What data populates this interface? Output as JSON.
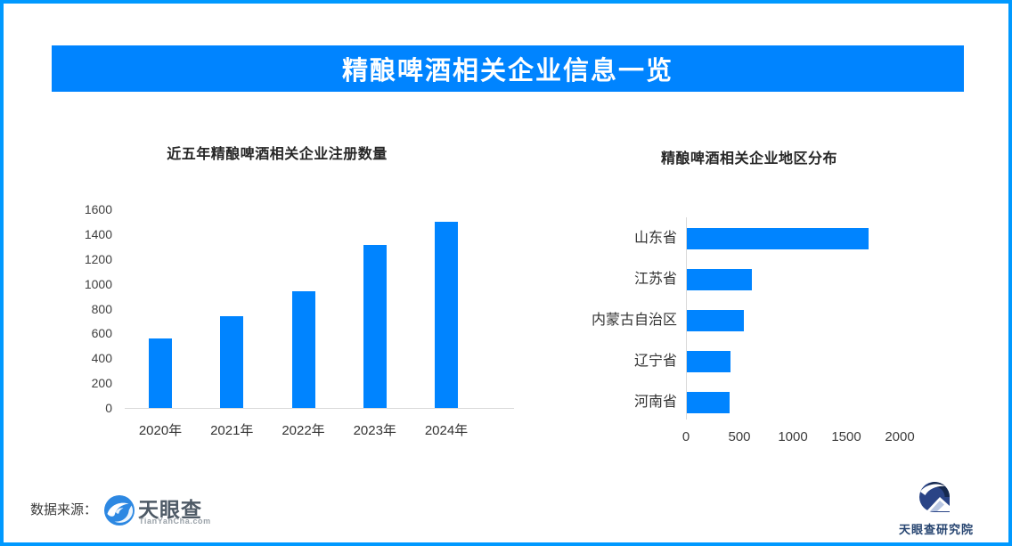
{
  "page": {
    "border_color": "#0099ff",
    "background_color": "#ffffff"
  },
  "banner": {
    "title": "精酿啤酒相关企业信息一览",
    "bg_color": "#0084ff",
    "text_color": "#ffffff"
  },
  "chart_data": [
    {
      "type": "bar",
      "orientation": "vertical",
      "title": "近五年精酿啤酒相关企业注册数量",
      "categories": [
        "2020年",
        "2021年",
        "2022年",
        "2023年",
        "2024年"
      ],
      "values": [
        560,
        740,
        940,
        1315,
        1500
      ],
      "ylabel": "",
      "xlabel": "",
      "ylim": [
        0,
        1600
      ],
      "ytick_step": 200,
      "bar_color": "#0084ff",
      "grid": false,
      "legend": "none"
    },
    {
      "type": "bar",
      "orientation": "horizontal",
      "title": "精酿啤酒相关企业地区分布",
      "categories": [
        "山东省",
        "江苏省",
        "内蒙古自治区",
        "辽宁省",
        "河南省"
      ],
      "values": [
        1700,
        610,
        535,
        410,
        400
      ],
      "ylabel": "",
      "xlabel": "",
      "xlim": [
        0,
        2000
      ],
      "xtick_step": 500,
      "bar_color": "#0084ff",
      "grid": false,
      "legend": "none"
    }
  ],
  "footer": {
    "source_label": "数据来源：",
    "source_logo_name": "天眼查",
    "source_logo_sub": "TianYanCha.com",
    "right_logo_name": "天眼查研究院"
  }
}
